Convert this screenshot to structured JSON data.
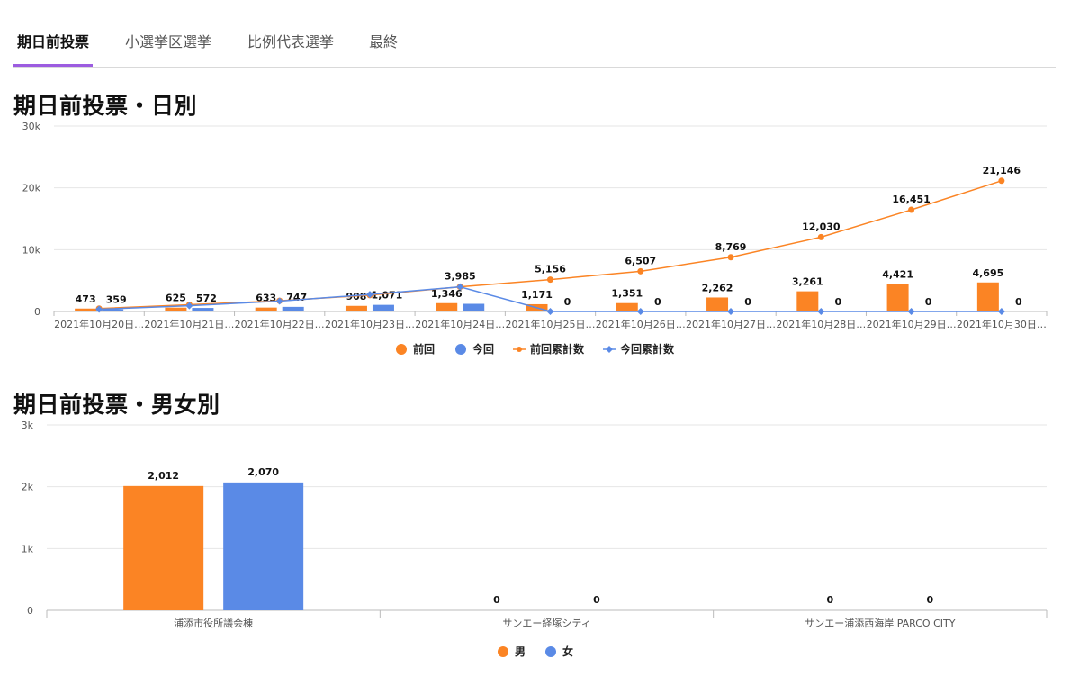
{
  "tabs": [
    {
      "label": "期日前投票",
      "active": true
    },
    {
      "label": "小選挙区選挙",
      "active": false
    },
    {
      "label": "比例代表選挙",
      "active": false
    },
    {
      "label": "最終",
      "active": false
    }
  ],
  "section1": {
    "title": "期日前投票・日別"
  },
  "section2": {
    "title": "期日前投票・男女別"
  },
  "colors": {
    "orange": "#fb8424",
    "blue": "#5a8ae6",
    "accent": "#9c5ce0"
  },
  "chart_data": [
    {
      "type": "bar",
      "title": "期日前投票・日別",
      "categories": [
        "2021年10月20日…",
        "2021年10月21日…",
        "2021年10月22日…",
        "2021年10月23日…",
        "2021年10月24日…",
        "2021年10月25日…",
        "2021年10月26日…",
        "2021年10月27日…",
        "2021年10月28日…",
        "2021年10月29日…",
        "2021年10月30日…"
      ],
      "y_ticks": [
        "0",
        "10k",
        "20k",
        "30k"
      ],
      "ylim": [
        0,
        30000
      ],
      "series": [
        {
          "name": "前回",
          "kind": "bar",
          "color": "#fb8424",
          "values": [
            473,
            625,
            633,
            908,
            1346,
            1171,
            1351,
            2262,
            3261,
            4421,
            4695
          ],
          "labels": [
            "473",
            "625",
            "633",
            "908",
            "1,346",
            "1,171",
            "1,351",
            "2,262",
            "3,261",
            "4,421",
            "4,695"
          ]
        },
        {
          "name": "今回",
          "kind": "bar",
          "color": "#5a8ae6",
          "values": [
            359,
            572,
            747,
            1071,
            1236,
            0,
            0,
            0,
            0,
            0,
            0
          ],
          "labels": [
            "359",
            "572",
            "747",
            "1,071",
            "",
            "0",
            "0",
            "0",
            "0",
            "0",
            "0"
          ]
        },
        {
          "name": "前回累計数",
          "kind": "line",
          "color": "#fb8424",
          "values": [
            473,
            1098,
            1731,
            2639,
            3985,
            5156,
            6507,
            8769,
            12030,
            16451,
            21146
          ],
          "labels": [
            "",
            "",
            "",
            "",
            "3,985",
            "5,156",
            "6,507",
            "8,769",
            "12,030",
            "16,451",
            "21,146"
          ]
        },
        {
          "name": "今回累計数",
          "kind": "line",
          "color": "#5a8ae6",
          "values": [
            359,
            931,
            1678,
            2749,
            3985,
            0,
            0,
            0,
            0,
            0,
            0
          ],
          "labels": []
        }
      ],
      "legend_position": "bottom",
      "grid": true
    },
    {
      "type": "bar",
      "title": "期日前投票・男女別",
      "categories": [
        "浦添市役所議会棟",
        "サンエー経塚シティ",
        "サンエー浦添西海岸 PARCO CITY"
      ],
      "y_ticks": [
        "0",
        "1k",
        "2k",
        "3k"
      ],
      "ylim": [
        0,
        3000
      ],
      "series": [
        {
          "name": "男",
          "color": "#fb8424",
          "values": [
            2012,
            0,
            0
          ],
          "labels": [
            "2,012",
            "0",
            "0"
          ]
        },
        {
          "name": "女",
          "color": "#5a8ae6",
          "values": [
            2070,
            0,
            0
          ],
          "labels": [
            "2,070",
            "0",
            "0"
          ]
        }
      ],
      "legend_position": "bottom",
      "grid": true
    }
  ]
}
